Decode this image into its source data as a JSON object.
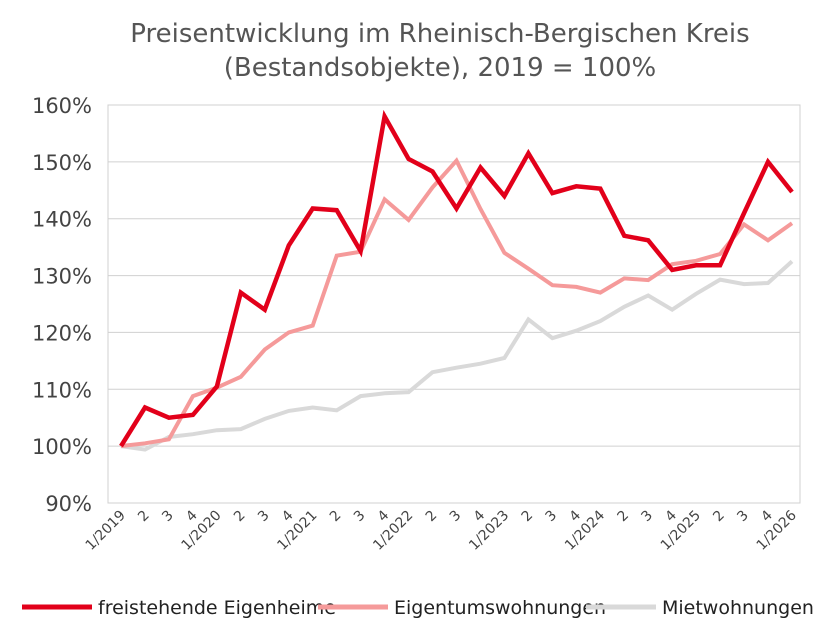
{
  "chart_data": {
    "type": "line",
    "title": "Preisentwicklung im Rheinisch-Bergischen Kreis",
    "subtitle": "(Bestandsobjekte), 2019 = 100%",
    "xlabel": "",
    "ylabel": "",
    "ylim": [
      90,
      160
    ],
    "yticks": [
      "90%",
      "100%",
      "110%",
      "120%",
      "130%",
      "140%",
      "150%",
      "160%"
    ],
    "grid": true,
    "legend_position": "bottom",
    "categories": [
      "1/2019",
      "2",
      "3",
      "4",
      "1/2020",
      "2",
      "3",
      "4",
      "1/2021",
      "2",
      "3",
      "4",
      "1/2022",
      "2",
      "3",
      "4",
      "1/2023",
      "2",
      "3",
      "4",
      "1/2024",
      "2",
      "3",
      "4",
      "1/2025",
      "2",
      "3",
      "4",
      "1/2026"
    ],
    "series": [
      {
        "name": "freistehende Eigenheime",
        "color": "#e2001a",
        "values": [
          100,
          106.8,
          105,
          105.5,
          110.5,
          127,
          124,
          135.3,
          141.8,
          141.5,
          134.3,
          158,
          150.5,
          148.3,
          141.8,
          149,
          144,
          151.5,
          144.5,
          145.7,
          145.3,
          137,
          136.2,
          131,
          131.8,
          131.8,
          141,
          150,
          144.7
        ]
      },
      {
        "name": "Eigentumswohnungen",
        "color": "#f59a9a",
        "values": [
          100,
          100.5,
          101.2,
          108.8,
          110.3,
          112.2,
          117,
          120,
          121.2,
          133.5,
          134.2,
          143.4,
          139.8,
          145.5,
          150.2,
          141.7,
          134,
          131.2,
          128.3,
          128,
          127,
          129.5,
          129.2,
          132,
          132.6,
          133.8,
          139,
          136.2,
          139.2
        ]
      },
      {
        "name": "Mietwohnungen",
        "color": "#d9d9d9",
        "values": [
          100,
          99.4,
          101.6,
          102.1,
          102.8,
          103,
          104.8,
          106.2,
          106.8,
          106.3,
          108.8,
          109.3,
          109.5,
          113,
          113.8,
          114.5,
          115.5,
          122.3,
          119,
          120.3,
          122,
          124.5,
          126.5,
          124,
          126.8,
          129.3,
          128.5,
          128.7,
          132.5
        ]
      }
    ]
  }
}
